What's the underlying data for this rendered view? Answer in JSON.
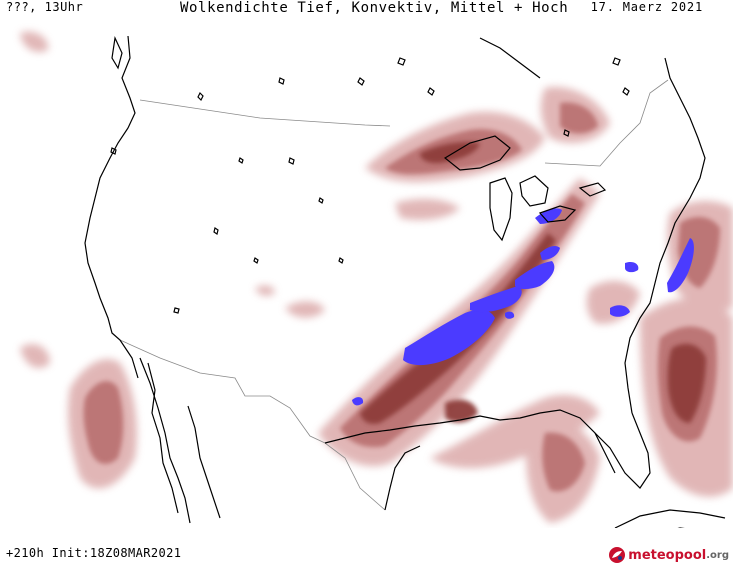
{
  "header": {
    "location_time": "???, 13Uhr",
    "title": "Wolkendichte  Tief, Konvektiv, Mittel + Hoch",
    "date": "17. Maerz 2021"
  },
  "footer": {
    "forecast_info": "+210h Init:18Z08MAR2021"
  },
  "brand": {
    "name": "meteopool",
    "tld": ".org",
    "icon": "meteopool-logo-icon"
  },
  "colors": {
    "cloud_light": "#dcaaaa",
    "cloud_medium": "#b9706f",
    "cloud_dark": "#8e3d3b",
    "convective": "#4b3bff",
    "border": "#8a8a8a",
    "coast": "#000000",
    "brand_red": "#c8102e"
  }
}
